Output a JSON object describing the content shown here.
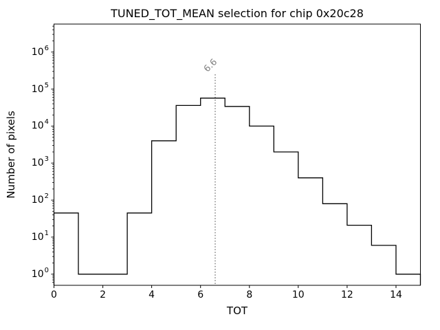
{
  "chart_data": {
    "type": "histogram-step",
    "title": "TUNED_TOT_MEAN selection for chip 0x20c28",
    "xlabel": "TOT",
    "ylabel": "Number of pixels",
    "xscale": "linear",
    "yscale": "log",
    "xlim": [
      0,
      15
    ],
    "ylim": [
      0.5,
      5700000
    ],
    "grid": false,
    "legend": null,
    "bin_edges": [
      0,
      1,
      2,
      3,
      4,
      5,
      6,
      7,
      8,
      9,
      10,
      11,
      12,
      13,
      14,
      15
    ],
    "counts": [
      45,
      1,
      1,
      45,
      4000,
      36000,
      57000,
      34000,
      10000,
      2000,
      400,
      80,
      21,
      6,
      1
    ],
    "x_ticks": [
      0,
      2,
      4,
      6,
      8,
      10,
      12,
      14
    ],
    "x_tick_labels": [
      "0",
      "2",
      "4",
      "6",
      "8",
      "10",
      "12",
      "14"
    ],
    "y_tick_base": "10",
    "y_tick_exponents": [
      0,
      1,
      2,
      3,
      4,
      5,
      6
    ],
    "y_tick_labels": [
      "10^0",
      "10^1",
      "10^2",
      "10^3",
      "10^4",
      "10^5",
      "10^6"
    ],
    "line_color": "#000000",
    "spine_color": "#000000",
    "background_color": "#ffffff",
    "annotation": {
      "x": 6.6,
      "label": "6.6",
      "color": "#808080",
      "line_style": "dotted",
      "line_top_value": 250000,
      "label_rotation_deg": 45
    }
  }
}
